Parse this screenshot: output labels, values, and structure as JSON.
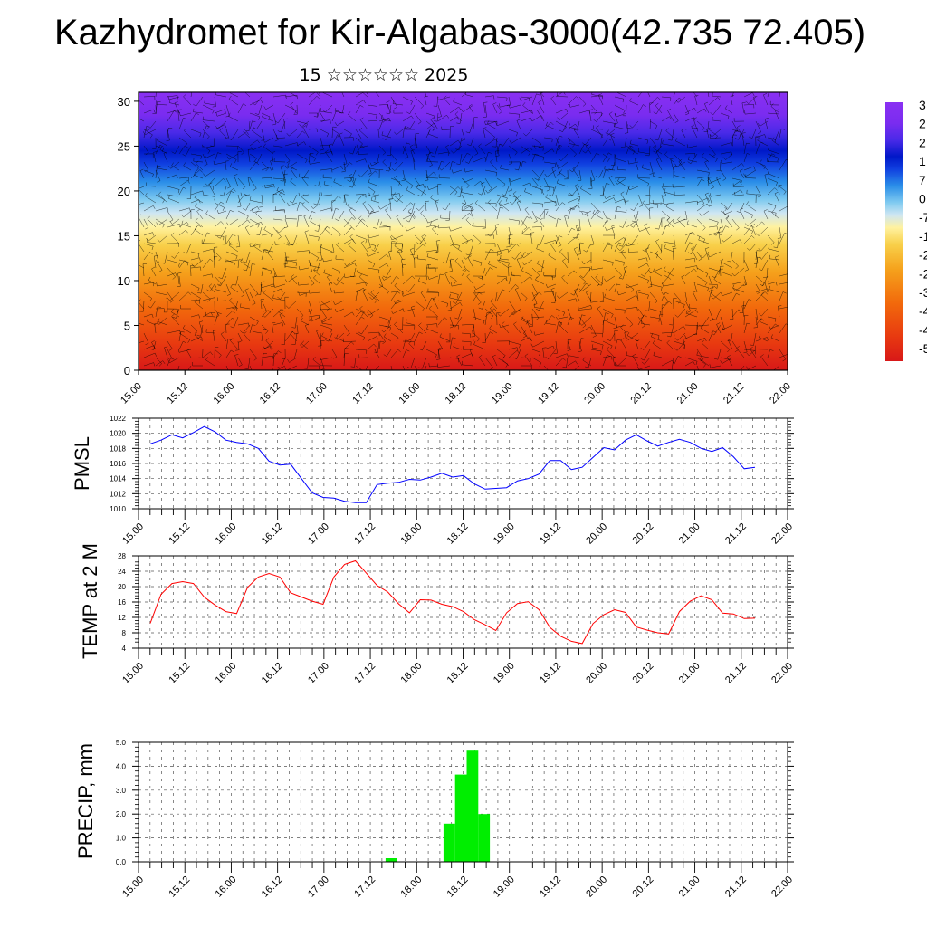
{
  "title": "Kazhydromet for Kir-Algabas-3000(42.735 72.405)",
  "subtitle": "15 ☆☆☆☆☆☆ 2025",
  "x_tick_labels": [
    "15.00",
    "15.12",
    "16.00",
    "16.12",
    "17.00",
    "17.12",
    "18.00",
    "18.12",
    "19.00",
    "19.12",
    "20.00",
    "20.12",
    "21.00",
    "21.12",
    "22.00"
  ],
  "colors": {
    "pmsl_line": "#0000ff",
    "temp_line": "#ff0000",
    "precip_bar": "#00ee00"
  },
  "chart_data": [
    {
      "type": "heatmap",
      "name": "cross-section",
      "description_colormap": "temperature with wind barbs",
      "y_ticks": [
        0,
        5,
        10,
        15,
        20,
        25,
        30
      ],
      "ylim": [
        0,
        31
      ],
      "colorbar_labels": [
        "3",
        "2",
        "2",
        "1",
        "7",
        "0",
        "-7",
        "-1",
        "-2",
        "-2",
        "-3",
        "-4",
        "-4",
        "-5"
      ],
      "band_colors": [
        {
          "level": 0,
          "color": "#d81818"
        },
        {
          "level": 3,
          "color": "#e83a10"
        },
        {
          "level": 7,
          "color": "#f26a0c"
        },
        {
          "level": 11,
          "color": "#f5a21c"
        },
        {
          "level": 14,
          "color": "#f8d04a"
        },
        {
          "level": 16,
          "color": "#fff2a0"
        },
        {
          "level": 17.5,
          "color": "#cfe6f2"
        },
        {
          "level": 19,
          "color": "#7fcaf0"
        },
        {
          "level": 21,
          "color": "#2a8ee8"
        },
        {
          "level": 23,
          "color": "#1040e0"
        },
        {
          "level": 24.5,
          "color": "#0018c8"
        },
        {
          "level": 26.5,
          "color": "#4a2ae8"
        },
        {
          "level": 28.5,
          "color": "#7a2cf0"
        },
        {
          "level": 31,
          "color": "#8a30f2"
        }
      ]
    },
    {
      "type": "line",
      "name": "pmsl",
      "ylabel": "PMSL",
      "ylim": [
        1010,
        1022
      ],
      "y_ticks": [
        1010,
        1012,
        1014,
        1016,
        1018,
        1020,
        1022
      ],
      "values": [
        1018.6,
        1019.1,
        1019.8,
        1019.4,
        1020.1,
        1020.9,
        1020.2,
        1019.1,
        1018.8,
        1018.6,
        1018.0,
        1016.3,
        1015.8,
        1015.9,
        1014.0,
        1012.1,
        1011.5,
        1011.4,
        1011.0,
        1010.8,
        1010.8,
        1013.2,
        1013.4,
        1013.5,
        1013.9,
        1013.8,
        1014.2,
        1014.7,
        1014.2,
        1014.4,
        1013.3,
        1012.6,
        1012.7,
        1012.8,
        1013.7,
        1014.0,
        1014.6,
        1016.4,
        1016.4,
        1015.2,
        1015.5,
        1016.8,
        1018.1,
        1017.8,
        1019.1,
        1019.8,
        1019.0,
        1018.3,
        1018.8,
        1019.2,
        1018.8,
        1018.0,
        1017.6,
        1018.1,
        1016.9,
        1015.3,
        1015.5
      ]
    },
    {
      "type": "line",
      "name": "temp",
      "ylabel": "TEMP at 2 M",
      "ylim": [
        4,
        28
      ],
      "y_ticks": [
        4,
        8,
        12,
        16,
        20,
        24,
        28
      ],
      "values": [
        10.5,
        18.0,
        20.8,
        21.3,
        20.8,
        17.3,
        15.2,
        13.5,
        13.0,
        19.8,
        22.5,
        23.4,
        22.5,
        18.4,
        17.3,
        16.2,
        15.4,
        22.5,
        25.8,
        26.7,
        23.5,
        20.3,
        18.6,
        15.5,
        13.2,
        16.6,
        16.5,
        15.4,
        14.8,
        13.5,
        11.4,
        10.1,
        8.6,
        13.2,
        15.6,
        16.1,
        14.0,
        9.4,
        7.1,
        5.8,
        5.2,
        10.4,
        12.7,
        14.0,
        13.3,
        9.5,
        8.7,
        8.0,
        7.7,
        13.5,
        16.2,
        17.6,
        16.6,
        13.1,
        12.9,
        11.7,
        11.8
      ]
    },
    {
      "type": "bar",
      "name": "precip",
      "ylabel": "PRECIP, mm",
      "ylim": [
        0,
        5
      ],
      "y_tick_labels": [
        "0.0",
        "1.0",
        "2.0",
        "3.0",
        "4.0",
        "5.0"
      ],
      "bars": [
        {
          "x_step": 21,
          "value": 0.15
        },
        {
          "x_step": 26,
          "value": 1.6
        },
        {
          "x_step": 27,
          "value": 3.65
        },
        {
          "x_step": 28,
          "value": 4.65
        },
        {
          "x_step": 29,
          "value": 2.0
        }
      ]
    }
  ]
}
